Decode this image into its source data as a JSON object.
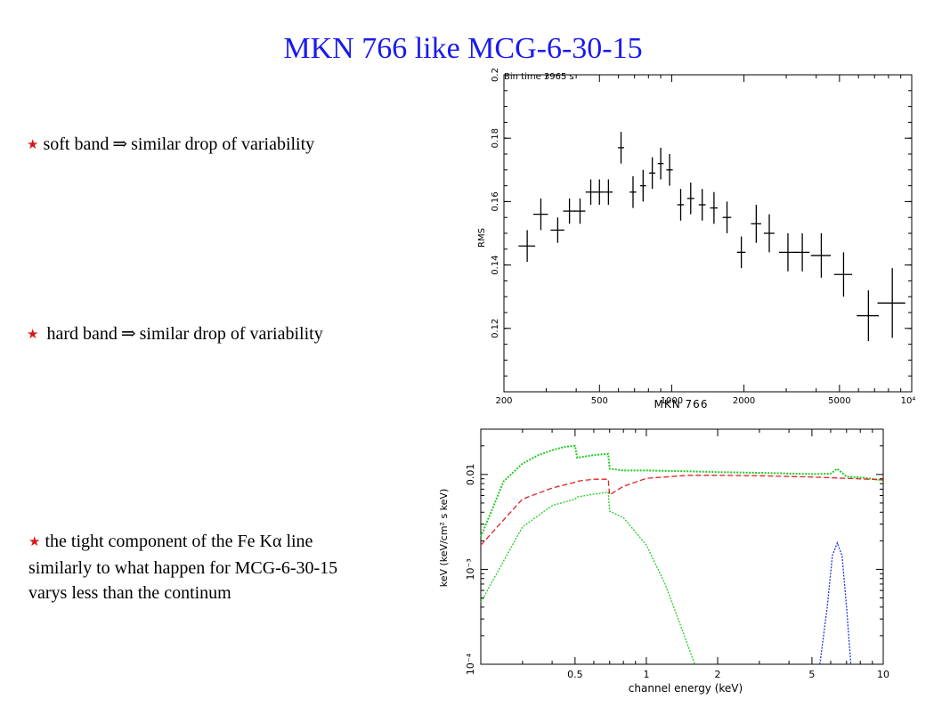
{
  "slide": {
    "title": "MKN 766 like MCG-6-30-15",
    "bullets": [
      {
        "icon": "red-star-icon",
        "text_before": "soft band",
        "arrow": "⇒",
        "text_after": "similar drop of variability"
      },
      {
        "icon": "red-star-icon",
        "text_before": "hard band",
        "arrow": "⇒",
        "text_after": "similar drop of variability"
      }
    ],
    "paragraph": {
      "icon": "red-star-icon",
      "line1": "the tight component of the Fe Kα  line",
      "line2": "similarly to what happen for MCG-6-30-15",
      "line3": "varys less than the continum"
    }
  },
  "chart_data": [
    {
      "type": "scatter",
      "title": "Bin time 3965 s",
      "xlabel": "MKN 766",
      "ylabel": "RMS",
      "xscale": "log",
      "xlim": [
        200,
        10000
      ],
      "ylim": [
        0.1,
        0.2
      ],
      "x_ticks": [
        "200",
        "500",
        "1000",
        "2000",
        "5000",
        "10⁴"
      ],
      "y_ticks": [
        "0.12",
        "0.14",
        "0.16",
        "0.18",
        "0.2"
      ],
      "grid": false,
      "points": [
        {
          "x": 250,
          "y": 0.146,
          "xerr": 20,
          "yerr": 0.005
        },
        {
          "x": 285,
          "y": 0.156,
          "xerr": 20,
          "yerr": 0.005
        },
        {
          "x": 335,
          "y": 0.151,
          "xerr": 22,
          "yerr": 0.004
        },
        {
          "x": 375,
          "y": 0.157,
          "xerr": 22,
          "yerr": 0.004
        },
        {
          "x": 415,
          "y": 0.157,
          "xerr": 22,
          "yerr": 0.004
        },
        {
          "x": 460,
          "y": 0.163,
          "xerr": 22,
          "yerr": 0.004
        },
        {
          "x": 500,
          "y": 0.163,
          "xerr": 22,
          "yerr": 0.004
        },
        {
          "x": 545,
          "y": 0.163,
          "xerr": 22,
          "yerr": 0.004
        },
        {
          "x": 615,
          "y": 0.177,
          "xerr": 18,
          "yerr": 0.005
        },
        {
          "x": 690,
          "y": 0.163,
          "xerr": 22,
          "yerr": 0.005
        },
        {
          "x": 760,
          "y": 0.165,
          "xerr": 22,
          "yerr": 0.005
        },
        {
          "x": 830,
          "y": 0.169,
          "xerr": 25,
          "yerr": 0.005
        },
        {
          "x": 900,
          "y": 0.172,
          "xerr": 25,
          "yerr": 0.005
        },
        {
          "x": 980,
          "y": 0.17,
          "xerr": 30,
          "yerr": 0.005
        },
        {
          "x": 1090,
          "y": 0.159,
          "xerr": 35,
          "yerr": 0.005
        },
        {
          "x": 1200,
          "y": 0.161,
          "xerr": 40,
          "yerr": 0.005
        },
        {
          "x": 1340,
          "y": 0.159,
          "xerr": 45,
          "yerr": 0.005
        },
        {
          "x": 1500,
          "y": 0.158,
          "xerr": 55,
          "yerr": 0.005
        },
        {
          "x": 1700,
          "y": 0.155,
          "xerr": 70,
          "yerr": 0.005
        },
        {
          "x": 1950,
          "y": 0.144,
          "xerr": 80,
          "yerr": 0.005
        },
        {
          "x": 2250,
          "y": 0.153,
          "xerr": 110,
          "yerr": 0.006
        },
        {
          "x": 2550,
          "y": 0.15,
          "xerr": 130,
          "yerr": 0.006
        },
        {
          "x": 3050,
          "y": 0.144,
          "xerr": 250,
          "yerr": 0.006
        },
        {
          "x": 3500,
          "y": 0.144,
          "xerr": 250,
          "yerr": 0.006
        },
        {
          "x": 4200,
          "y": 0.143,
          "xerr": 400,
          "yerr": 0.007
        },
        {
          "x": 5200,
          "y": 0.137,
          "xerr": 450,
          "yerr": 0.007
        },
        {
          "x": 6600,
          "y": 0.124,
          "xerr": 700,
          "yerr": 0.008
        },
        {
          "x": 8300,
          "y": 0.128,
          "xerr": 1100,
          "yerr": 0.011
        }
      ]
    },
    {
      "type": "line",
      "xlabel": "channel energy (keV)",
      "ylabel": "keV (keV/cm² s keV)",
      "xscale": "log",
      "yscale": "log",
      "xlim": [
        0.2,
        10
      ],
      "ylim": [
        0.0001,
        0.03
      ],
      "x_ticks": [
        "0.5",
        "1",
        "2",
        "5",
        "10"
      ],
      "y_ticks": [
        "10⁻⁴",
        "10⁻³",
        "0.01"
      ],
      "series": [
        {
          "color": "#22cc22",
          "x": [
            0.2,
            0.25,
            0.3,
            0.35,
            0.4,
            0.45,
            0.5,
            0.51,
            0.6,
            0.69,
            0.7,
            0.8,
            1,
            1.5,
            2,
            3,
            5,
            6,
            6.4,
            7,
            8,
            10
          ],
          "y": [
            0.0022,
            0.0085,
            0.013,
            0.016,
            0.018,
            0.0195,
            0.02,
            0.015,
            0.016,
            0.0165,
            0.0115,
            0.011,
            0.011,
            0.0108,
            0.0106,
            0.0104,
            0.0101,
            0.0102,
            0.0115,
            0.0095,
            0.0093,
            0.0087
          ]
        },
        {
          "color": "#dd2222",
          "x": [
            0.2,
            0.3,
            0.4,
            0.5,
            0.51,
            0.6,
            0.69,
            0.7,
            0.8,
            1,
            1.5,
            2,
            3,
            5,
            10
          ],
          "y": [
            0.0018,
            0.0055,
            0.0072,
            0.0083,
            0.0085,
            0.0089,
            0.0089,
            0.0061,
            0.0075,
            0.0091,
            0.0098,
            0.0098,
            0.0097,
            0.0094,
            0.0088
          ]
        },
        {
          "color": "#22cc22",
          "x": [
            0.2,
            0.3,
            0.4,
            0.5,
            0.51,
            0.6,
            0.69,
            0.7,
            0.8,
            1,
            1.2,
            1.4,
            1.6
          ],
          "y": [
            0.00045,
            0.0028,
            0.0047,
            0.0055,
            0.0058,
            0.0062,
            0.0065,
            0.0041,
            0.0035,
            0.0018,
            0.0007,
            0.00025,
            0.0001
          ]
        },
        {
          "color": "#2233dd",
          "x": [
            5.4,
            5.8,
            6.1,
            6.4,
            6.7,
            7.0,
            7.3
          ],
          "y": [
            0.0001,
            0.0004,
            0.0014,
            0.0019,
            0.0014,
            0.0004,
            0.0001
          ]
        }
      ]
    }
  ]
}
